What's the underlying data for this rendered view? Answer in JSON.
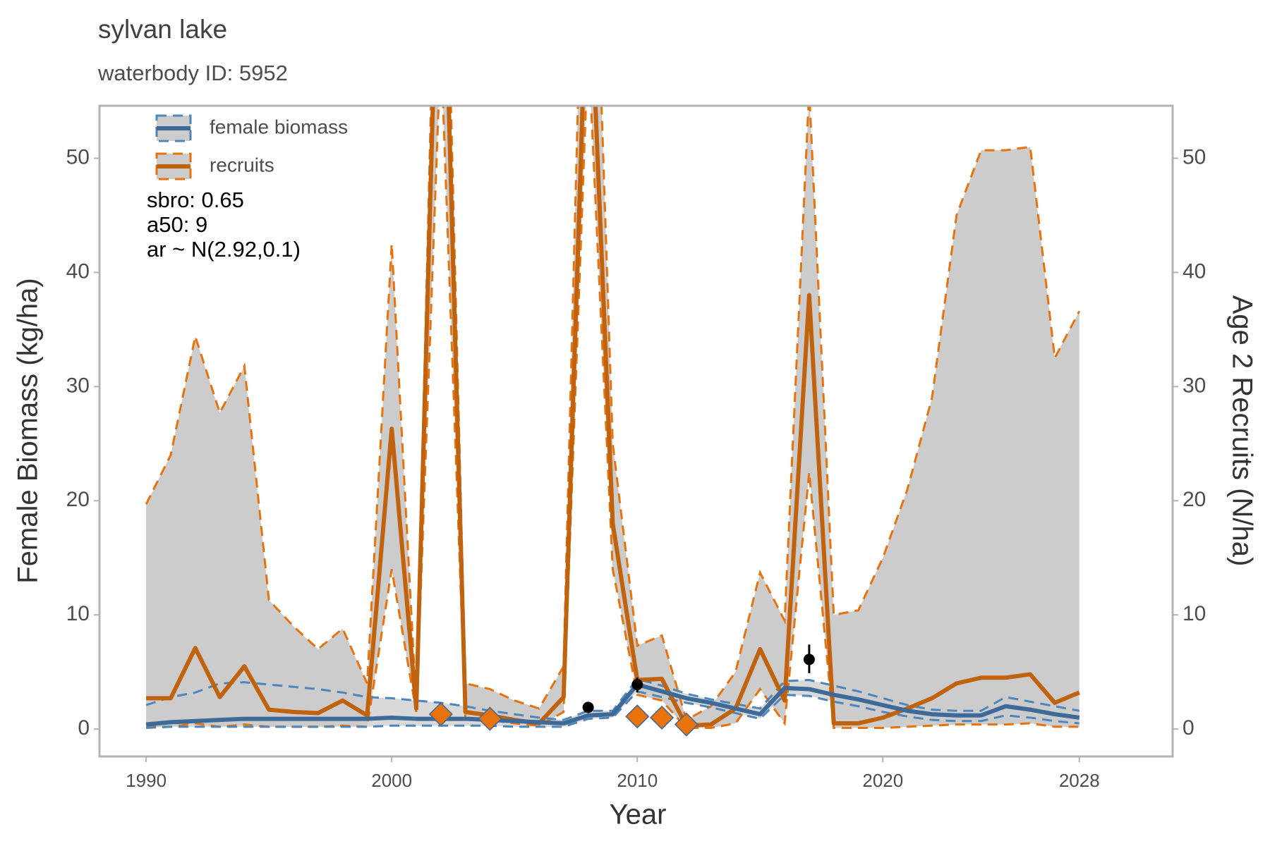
{
  "chart_data": {
    "type": "line",
    "title": "sylvan lake",
    "subtitle": "waterbody ID: 5952",
    "x_label": "Year",
    "y_label": "Female Biomass (kg/ha)",
    "y2_label": "Age 2 Recruits (N/ha)",
    "annotations": [
      "sbro: 0.65",
      "a50: 9",
      "ar ~ N(2.92,0.1)"
    ],
    "legend": "top-left",
    "band_color": "#cccccc",
    "x": [
      1990,
      1991,
      1992,
      1993,
      1994,
      1995,
      1996,
      1997,
      1998,
      1999,
      2000,
      2001,
      2002,
      2003,
      2004,
      2005,
      2006,
      2007,
      2008,
      2009,
      2010,
      2011,
      2012,
      2013,
      2014,
      2015,
      2016,
      2017,
      2018,
      2019,
      2020,
      2021,
      2022,
      2023,
      2024,
      2025,
      2026,
      2027,
      2028
    ],
    "xlim": [
      1988.1,
      2031.8
    ],
    "xticks": [
      1990,
      2000,
      2010,
      2020,
      2028
    ],
    "ylim": [
      -2.4,
      54.6
    ],
    "yticks": [
      0,
      10,
      20,
      30,
      40,
      50
    ],
    "y2lim": [
      -2.4,
      54.6
    ],
    "y2ticks": [
      0,
      10,
      20,
      30,
      40,
      50
    ],
    "series": [
      {
        "name": "female biomass",
        "color": "#3d6a98",
        "band_edge_color": "#4d86bd",
        "values": [
          0.4,
          0.6,
          0.7,
          0.8,
          0.9,
          0.9,
          0.9,
          0.9,
          0.9,
          0.9,
          1.0,
          0.9,
          0.9,
          0.9,
          0.8,
          0.7,
          0.6,
          0.5,
          1.2,
          1.3,
          3.9,
          3.3,
          2.7,
          2.3,
          1.8,
          1.3,
          3.6,
          3.5,
          3.0,
          2.6,
          2.1,
          1.6,
          1.3,
          1.2,
          1.2,
          2.0,
          1.7,
          1.3,
          1.0
        ],
        "lower": [
          0.1,
          0.2,
          0.2,
          0.2,
          0.2,
          0.2,
          0.2,
          0.2,
          0.2,
          0.2,
          0.3,
          0.3,
          0.3,
          0.3,
          0.3,
          0.2,
          0.2,
          0.2,
          0.9,
          1.0,
          3.3,
          2.8,
          2.3,
          1.9,
          1.4,
          0.9,
          3.0,
          2.9,
          2.4,
          2.0,
          1.5,
          1.1,
          0.8,
          0.7,
          0.7,
          1.2,
          1.0,
          0.7,
          0.5
        ],
        "upper": [
          2.1,
          2.8,
          3.2,
          4.0,
          4.1,
          3.9,
          3.7,
          3.5,
          3.2,
          2.8,
          2.7,
          2.5,
          2.3,
          2.0,
          1.6,
          1.3,
          1.0,
          0.8,
          1.6,
          1.6,
          4.4,
          3.8,
          3.1,
          2.6,
          2.2,
          1.8,
          4.2,
          4.3,
          3.8,
          3.3,
          2.7,
          2.1,
          1.7,
          1.6,
          1.6,
          2.8,
          2.4,
          2.0,
          1.6
        ]
      },
      {
        "name": "recruits",
        "color": "#c0620e",
        "band_edge_color": "#e8720c",
        "axis": "y2",
        "values": [
          2.7,
          2.7,
          7.1,
          2.8,
          5.5,
          1.7,
          1.5,
          1.4,
          2.5,
          1.2,
          26.3,
          1.8,
          80,
          1.5,
          1.2,
          0.8,
          0.5,
          2.8,
          70,
          18,
          4.3,
          4.4,
          0.3,
          0.4,
          1.8,
          7.0,
          2.5,
          38,
          0.5,
          0.5,
          1.0,
          1.8,
          2.7,
          4.0,
          4.5,
          4.5,
          4.8,
          2.3,
          3.2
        ],
        "lower": [
          0.2,
          0.2,
          0.5,
          0.2,
          0.4,
          0.2,
          0.2,
          0.2,
          0.3,
          0.2,
          14,
          1.5,
          60,
          1.0,
          0.8,
          0.5,
          0.3,
          1.5,
          60,
          14,
          3.0,
          2.5,
          0.1,
          0.1,
          0.5,
          3.5,
          0.5,
          22.5,
          0.1,
          0.1,
          0.1,
          0.2,
          0.3,
          0.4,
          0.4,
          0.4,
          0.5,
          0.2,
          0.2
        ],
        "upper": [
          19.7,
          24,
          34.4,
          27.7,
          31.8,
          11.3,
          9,
          7,
          8.8,
          4,
          42.5,
          2,
          90,
          4,
          3.5,
          2.5,
          1.8,
          5.5,
          90,
          25,
          7.3,
          8.2,
          0.8,
          2,
          5,
          13.7,
          9.5,
          56,
          10,
          10.4,
          15,
          21,
          29,
          45,
          50.7,
          50.7,
          51,
          32.5,
          36.6
        ]
      }
    ],
    "observations": [
      {
        "color": "#000000",
        "x": [
          2008,
          2010,
          2017
        ],
        "values": [
          1.9,
          3.9,
          6.1
        ],
        "lower": [
          1.6,
          3.2,
          4.9
        ],
        "upper": [
          2.2,
          4.5,
          7.4
        ]
      },
      {
        "color": "#e8720c",
        "axis": "y2",
        "x": [
          2002,
          2004,
          2010,
          2011,
          2012
        ],
        "values": [
          1.3,
          0.9,
          1.1,
          1.0,
          0.4
        ]
      }
    ]
  }
}
